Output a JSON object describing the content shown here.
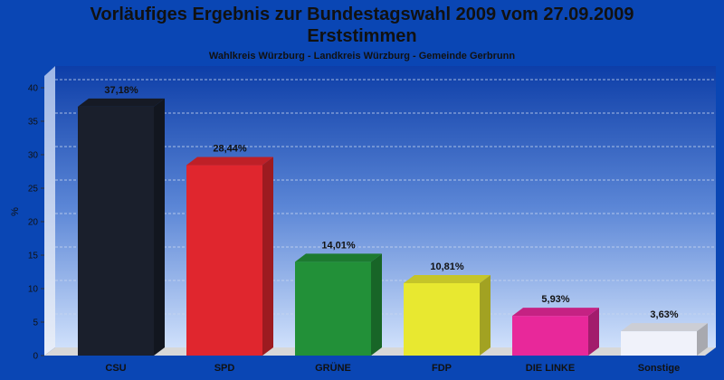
{
  "header": {
    "title_line1": "Vorläufiges Ergebnis zur Bundestagswahl 2009 vom 27.09.2009",
    "title_line2": "Erststimmen",
    "subtitle": "Wahlkreis Würzburg - Landkreis Würzburg - Gemeinde Gerbrunn"
  },
  "chart_data": {
    "type": "bar",
    "title": "Vorläufiges Ergebnis zur Bundestagswahl 2009 vom 27.09.2009 Erststimmen",
    "subtitle": "Wahlkreis Würzburg - Landkreis Würzburg - Gemeinde Gerbrunn",
    "xlabel": "",
    "ylabel": "%",
    "ylim": [
      0,
      40
    ],
    "yticks": [
      "0",
      "5",
      "10",
      "15",
      "20",
      "25",
      "30",
      "35",
      "40"
    ],
    "grid": true,
    "legend": "none",
    "categories": [
      "CSU",
      "SPD",
      "GRÜNE",
      "FDP",
      "DIE LINKE",
      "Sonstige"
    ],
    "values": [
      37.18,
      28.44,
      14.01,
      10.81,
      5.93,
      3.63
    ],
    "value_labels": [
      "37,18%",
      "28,44%",
      "14,01%",
      "10,81%",
      "5,93%",
      "3,63%"
    ],
    "colors": [
      "#1a1f2c",
      "#e0262e",
      "#229038",
      "#e8e830",
      "#e8289a",
      "#f0f2fa"
    ]
  }
}
